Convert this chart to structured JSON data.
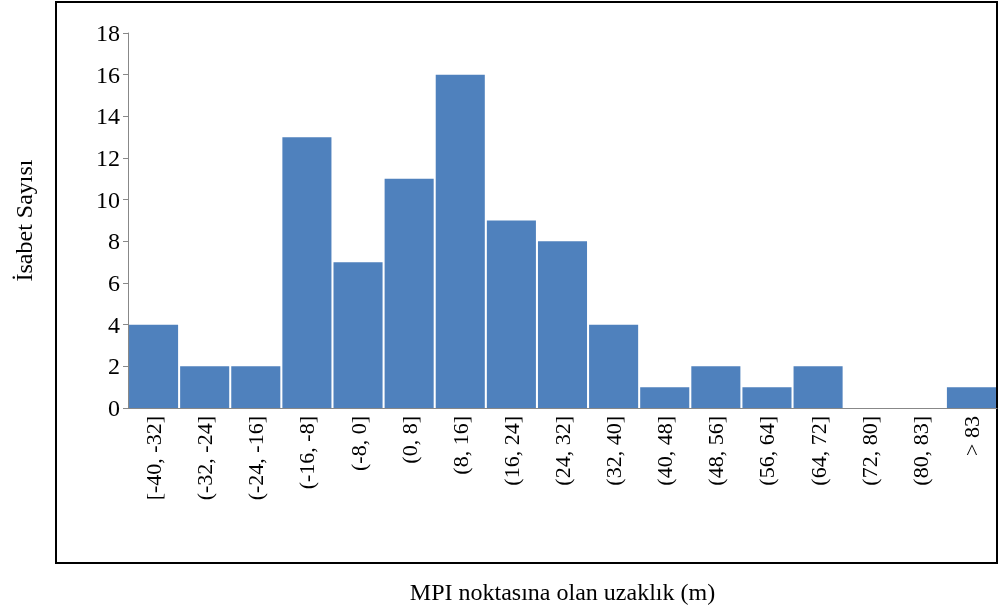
{
  "chart_data": {
    "type": "bar",
    "xlabel": "MPI noktasına olan uzaklık (m)",
    "ylabel": "İsabet Sayısı",
    "categories": [
      "[-40, -32]",
      "(-32, -24]",
      "(-24, -16]",
      "(-16, -8]",
      "(-8, 0]",
      "(0, 8]",
      "(8, 16]",
      "(16, 24]",
      "(24, 32]",
      "(32, 40]",
      "(40, 48]",
      "(48, 56]",
      "(56, 64]",
      "(64, 72]",
      "(72, 80]",
      "(80, 83]",
      "> 83"
    ],
    "values": [
      4,
      2,
      2,
      13,
      7,
      11,
      16,
      9,
      8,
      4,
      1,
      2,
      1,
      2,
      0,
      0,
      1
    ],
    "color": "#4f81bd",
    "ylim": [
      0,
      18
    ],
    "yticks": [
      0,
      2,
      4,
      6,
      8,
      10,
      12,
      14,
      16,
      18
    ],
    "grid": false
  }
}
